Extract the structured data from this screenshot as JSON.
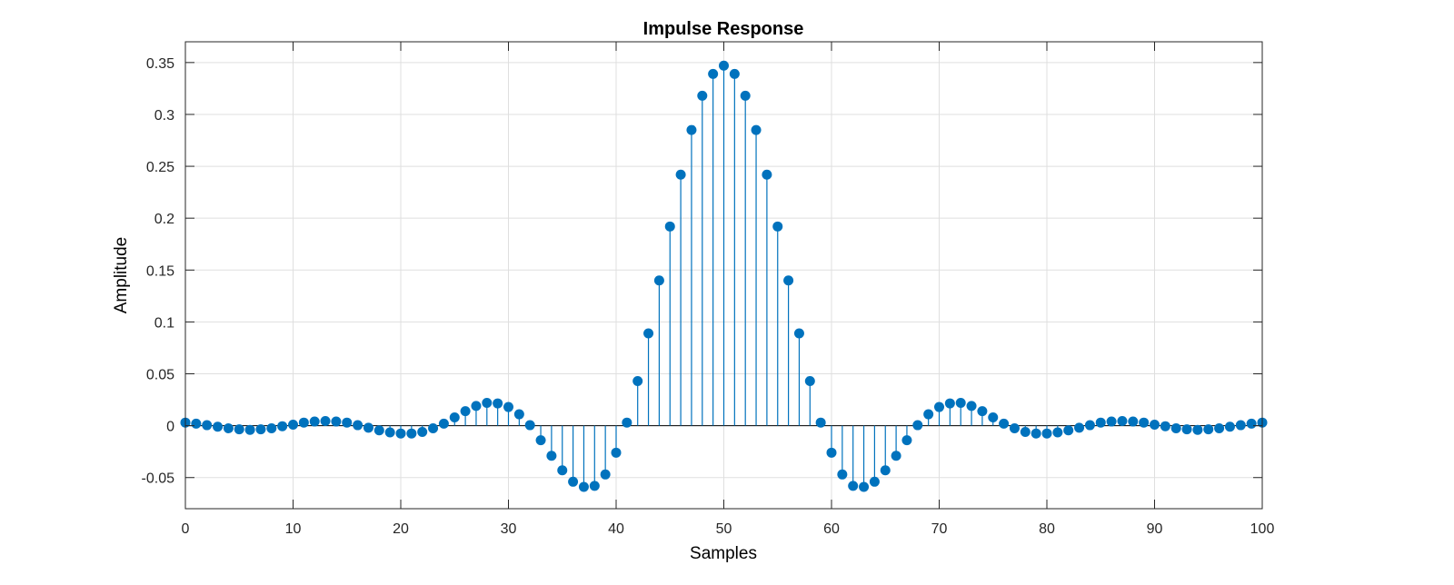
{
  "chart_data": {
    "type": "stem",
    "title": "Impulse Response",
    "xlabel": "Samples",
    "ylabel": "Amplitude",
    "xlim": [
      0,
      100
    ],
    "ylim": [
      -0.08,
      0.37
    ],
    "xticks": [
      0,
      10,
      20,
      30,
      40,
      50,
      60,
      70,
      80,
      90,
      100
    ],
    "xtick_labels": [
      "0",
      "10",
      "20",
      "30",
      "40",
      "50",
      "60",
      "70",
      "80",
      "90",
      "100"
    ],
    "yticks": [
      -0.05,
      0,
      0.05,
      0.1,
      0.15,
      0.2,
      0.25,
      0.3,
      0.35
    ],
    "ytick_labels": [
      "-0.05",
      "0",
      "0.05",
      "0.1",
      "0.15",
      "0.2",
      "0.25",
      "0.3",
      "0.35"
    ],
    "grid": true,
    "series_color": "#0072BD",
    "x": [
      0,
      1,
      2,
      3,
      4,
      5,
      6,
      7,
      8,
      9,
      10,
      11,
      12,
      13,
      14,
      15,
      16,
      17,
      18,
      19,
      20,
      21,
      22,
      23,
      24,
      25,
      26,
      27,
      28,
      29,
      30,
      31,
      32,
      33,
      34,
      35,
      36,
      37,
      38,
      39,
      40,
      41,
      42,
      43,
      44,
      45,
      46,
      47,
      48,
      49,
      50,
      51,
      52,
      53,
      54,
      55,
      56,
      57,
      58,
      59,
      60,
      61,
      62,
      63,
      64,
      65,
      66,
      67,
      68,
      69,
      70,
      71,
      72,
      73,
      74,
      75,
      76,
      77,
      78,
      79,
      80,
      81,
      82,
      83,
      84,
      85,
      86,
      87,
      88,
      89,
      90,
      91,
      92,
      93,
      94,
      95,
      96,
      97,
      98,
      99,
      100
    ],
    "y": [
      0.003,
      0.002,
      0.0005,
      -0.001,
      -0.0025,
      -0.0035,
      -0.004,
      -0.0035,
      -0.0025,
      -0.0005,
      0.001,
      0.003,
      0.004,
      0.0045,
      0.004,
      0.003,
      0.0005,
      -0.002,
      -0.0045,
      -0.0065,
      -0.0075,
      -0.0075,
      -0.006,
      -0.0025,
      0.002,
      0.008,
      0.014,
      0.019,
      0.022,
      0.0215,
      0.018,
      0.011,
      0.0005,
      -0.014,
      -0.029,
      -0.043,
      -0.054,
      -0.059,
      -0.058,
      -0.047,
      -0.026,
      0.003,
      0.043,
      0.089,
      0.14,
      0.192,
      0.242,
      0.285,
      0.318,
      0.339,
      0.347,
      0.339,
      0.318,
      0.285,
      0.242,
      0.192,
      0.14,
      0.089,
      0.043,
      0.003,
      -0.026,
      -0.047,
      -0.058,
      -0.059,
      -0.054,
      -0.043,
      -0.029,
      -0.014,
      0.0005,
      0.011,
      0.018,
      0.0215,
      0.022,
      0.019,
      0.014,
      0.008,
      0.002,
      -0.0025,
      -0.006,
      -0.0075,
      -0.0075,
      -0.0065,
      -0.0045,
      -0.002,
      0.0005,
      0.003,
      0.004,
      0.0045,
      0.004,
      0.003,
      0.001,
      -0.0005,
      -0.0025,
      -0.0035,
      -0.004,
      -0.0035,
      -0.0025,
      -0.001,
      0.0005,
      0.002,
      0.003
    ]
  }
}
